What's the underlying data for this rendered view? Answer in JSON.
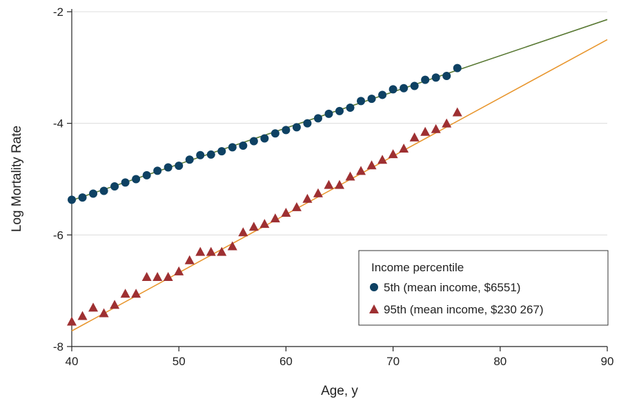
{
  "chart_data": {
    "type": "scatter",
    "xlabel": "Age, y",
    "ylabel": "Log Mortality Rate",
    "xlim": [
      40,
      90
    ],
    "ylim": [
      -8,
      -2
    ],
    "xticks": [
      40,
      50,
      60,
      70,
      80,
      90
    ],
    "yticks": [
      -2,
      -4,
      -6,
      -8
    ],
    "grid": "horizontal",
    "legend": {
      "title": "Income percentile",
      "position": "bottom-right"
    },
    "series": [
      {
        "name": "5th (mean income, $6551)",
        "marker": "circle",
        "marker_color": "#0e4163",
        "x": [
          40,
          41,
          42,
          43,
          44,
          45,
          46,
          47,
          48,
          49,
          50,
          51,
          52,
          53,
          54,
          55,
          56,
          57,
          58,
          59,
          60,
          61,
          62,
          63,
          64,
          65,
          66,
          67,
          68,
          69,
          70,
          71,
          72,
          73,
          74,
          75,
          76
        ],
        "y": [
          -5.37,
          -5.33,
          -5.26,
          -5.21,
          -5.13,
          -5.06,
          -5.0,
          -4.93,
          -4.85,
          -4.79,
          -4.76,
          -4.65,
          -4.57,
          -4.56,
          -4.5,
          -4.43,
          -4.4,
          -4.32,
          -4.27,
          -4.18,
          -4.12,
          -4.07,
          -4.0,
          -3.91,
          -3.83,
          -3.78,
          -3.72,
          -3.6,
          -3.56,
          -3.49,
          -3.39,
          -3.37,
          -3.33,
          -3.22,
          -3.18,
          -3.15,
          -3.01
        ],
        "fit_line": {
          "x": [
            40,
            90
          ],
          "y": [
            -5.38,
            -2.14
          ],
          "color": "#5a7a35"
        }
      },
      {
        "name": "95th (mean income, $230 267)",
        "marker": "triangle",
        "marker_color": "#9e3032",
        "x": [
          40,
          41,
          42,
          43,
          44,
          45,
          46,
          47,
          48,
          49,
          50,
          51,
          52,
          53,
          54,
          55,
          56,
          57,
          58,
          59,
          60,
          61,
          62,
          63,
          64,
          65,
          66,
          67,
          68,
          69,
          70,
          71,
          72,
          73,
          74,
          75,
          76
        ],
        "y": [
          -7.55,
          -7.45,
          -7.3,
          -7.4,
          -7.25,
          -7.05,
          -7.05,
          -6.75,
          -6.75,
          -6.75,
          -6.65,
          -6.45,
          -6.3,
          -6.3,
          -6.3,
          -6.2,
          -5.95,
          -5.85,
          -5.8,
          -5.7,
          -5.6,
          -5.5,
          -5.35,
          -5.25,
          -5.1,
          -5.1,
          -4.95,
          -4.85,
          -4.75,
          -4.65,
          -4.55,
          -4.45,
          -4.25,
          -4.15,
          -4.1,
          -4.0,
          -3.8
        ],
        "fit_line": {
          "x": [
            40,
            90
          ],
          "y": [
            -7.72,
            -2.5
          ],
          "color": "#e8962e"
        }
      }
    ]
  }
}
